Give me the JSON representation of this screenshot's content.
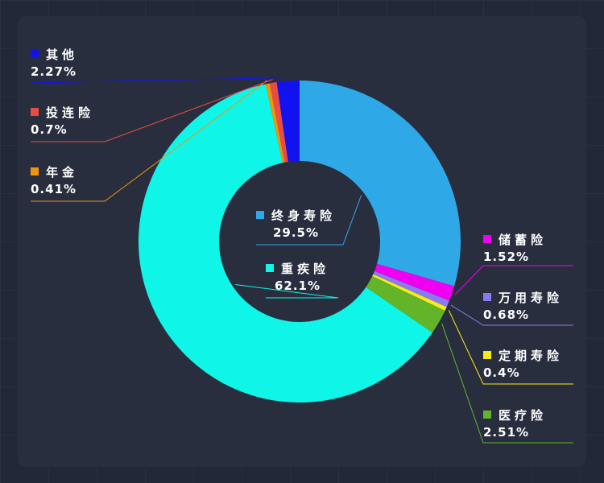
{
  "chart_data": {
    "type": "pie",
    "donut": true,
    "slices": [
      {
        "label": "终身寿险",
        "value_label": "29.5%",
        "value": 29.5,
        "color": "#2fa8e8"
      },
      {
        "label": "储蓄险",
        "value_label": "1.52%",
        "value": 1.52,
        "color": "#ee00f0"
      },
      {
        "label": "万用寿险",
        "value_label": "0.68%",
        "value": 0.68,
        "color": "#8a7af0"
      },
      {
        "label": "定期寿险",
        "value_label": "0.4%",
        "value": 0.4,
        "color": "#f5ec1a"
      },
      {
        "label": "医疗险",
        "value_label": "2.51%",
        "value": 2.51,
        "color": "#64b42a"
      },
      {
        "label": "重疾险",
        "value_label": "62.1%",
        "value": 62.1,
        "color": "#0ff5e8"
      },
      {
        "label": "年金",
        "value_label": "0.41%",
        "value": 0.41,
        "color": "#f0960a"
      },
      {
        "label": "投连险",
        "value_label": "0.7%",
        "value": 0.7,
        "color": "#ea4c42"
      },
      {
        "label": "其他",
        "value_label": "2.27%",
        "value": 2.27,
        "color": "#1212f0"
      }
    ]
  }
}
